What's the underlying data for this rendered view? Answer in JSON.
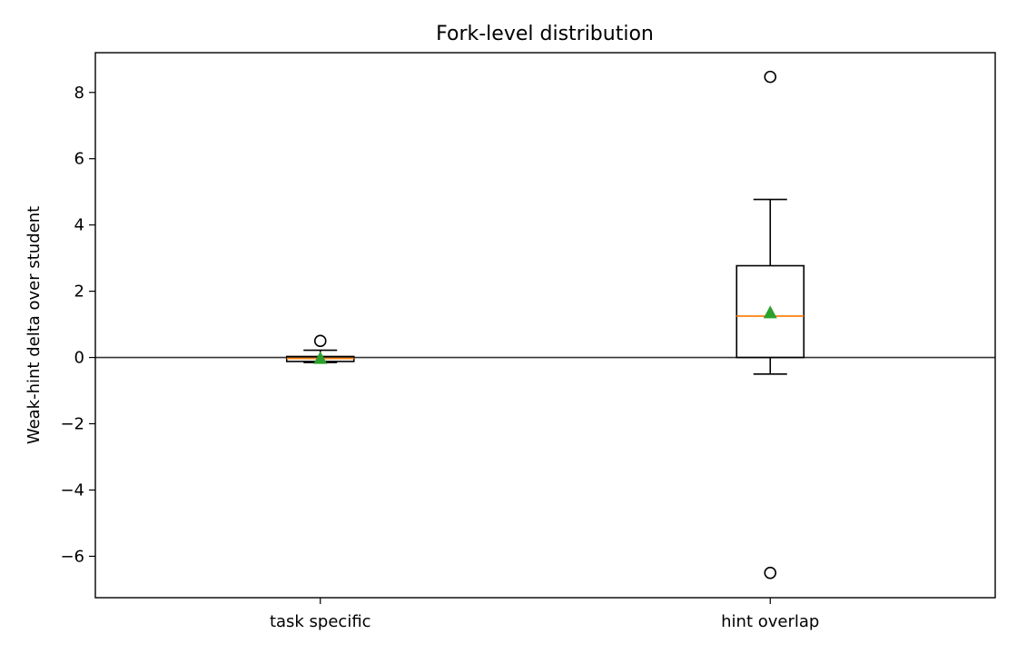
{
  "chart_data": {
    "type": "box",
    "title": "Fork-level distribution",
    "xlabel": "",
    "ylabel": "Weak-hint delta over student",
    "categories": [
      "task specific",
      "hint overlap"
    ],
    "ylim": [
      -7.25,
      9.2
    ],
    "yticks": [
      -6,
      -4,
      -2,
      0,
      2,
      4,
      6,
      8
    ],
    "ytick_labels": [
      "−6",
      "−4",
      "−2",
      "0",
      "2",
      "4",
      "6",
      "8"
    ],
    "grid": false,
    "reference_line": {
      "y": 0,
      "color": "#333333"
    },
    "boxes": [
      {
        "category": "task specific",
        "whisker_low": -0.15,
        "q1": -0.12,
        "median": -0.03,
        "q3": 0.03,
        "whisker_high": 0.22,
        "mean": -0.03,
        "outliers": [
          0.5
        ]
      },
      {
        "category": "hint overlap",
        "whisker_low": -0.5,
        "q1": 0.0,
        "median": 1.25,
        "q3": 2.77,
        "whisker_high": 4.77,
        "mean": 1.35,
        "outliers": [
          8.47,
          -6.5
        ]
      }
    ],
    "colors": {
      "box": "#000000",
      "median": "#ff7f0e",
      "mean": "#2ca02c"
    }
  }
}
